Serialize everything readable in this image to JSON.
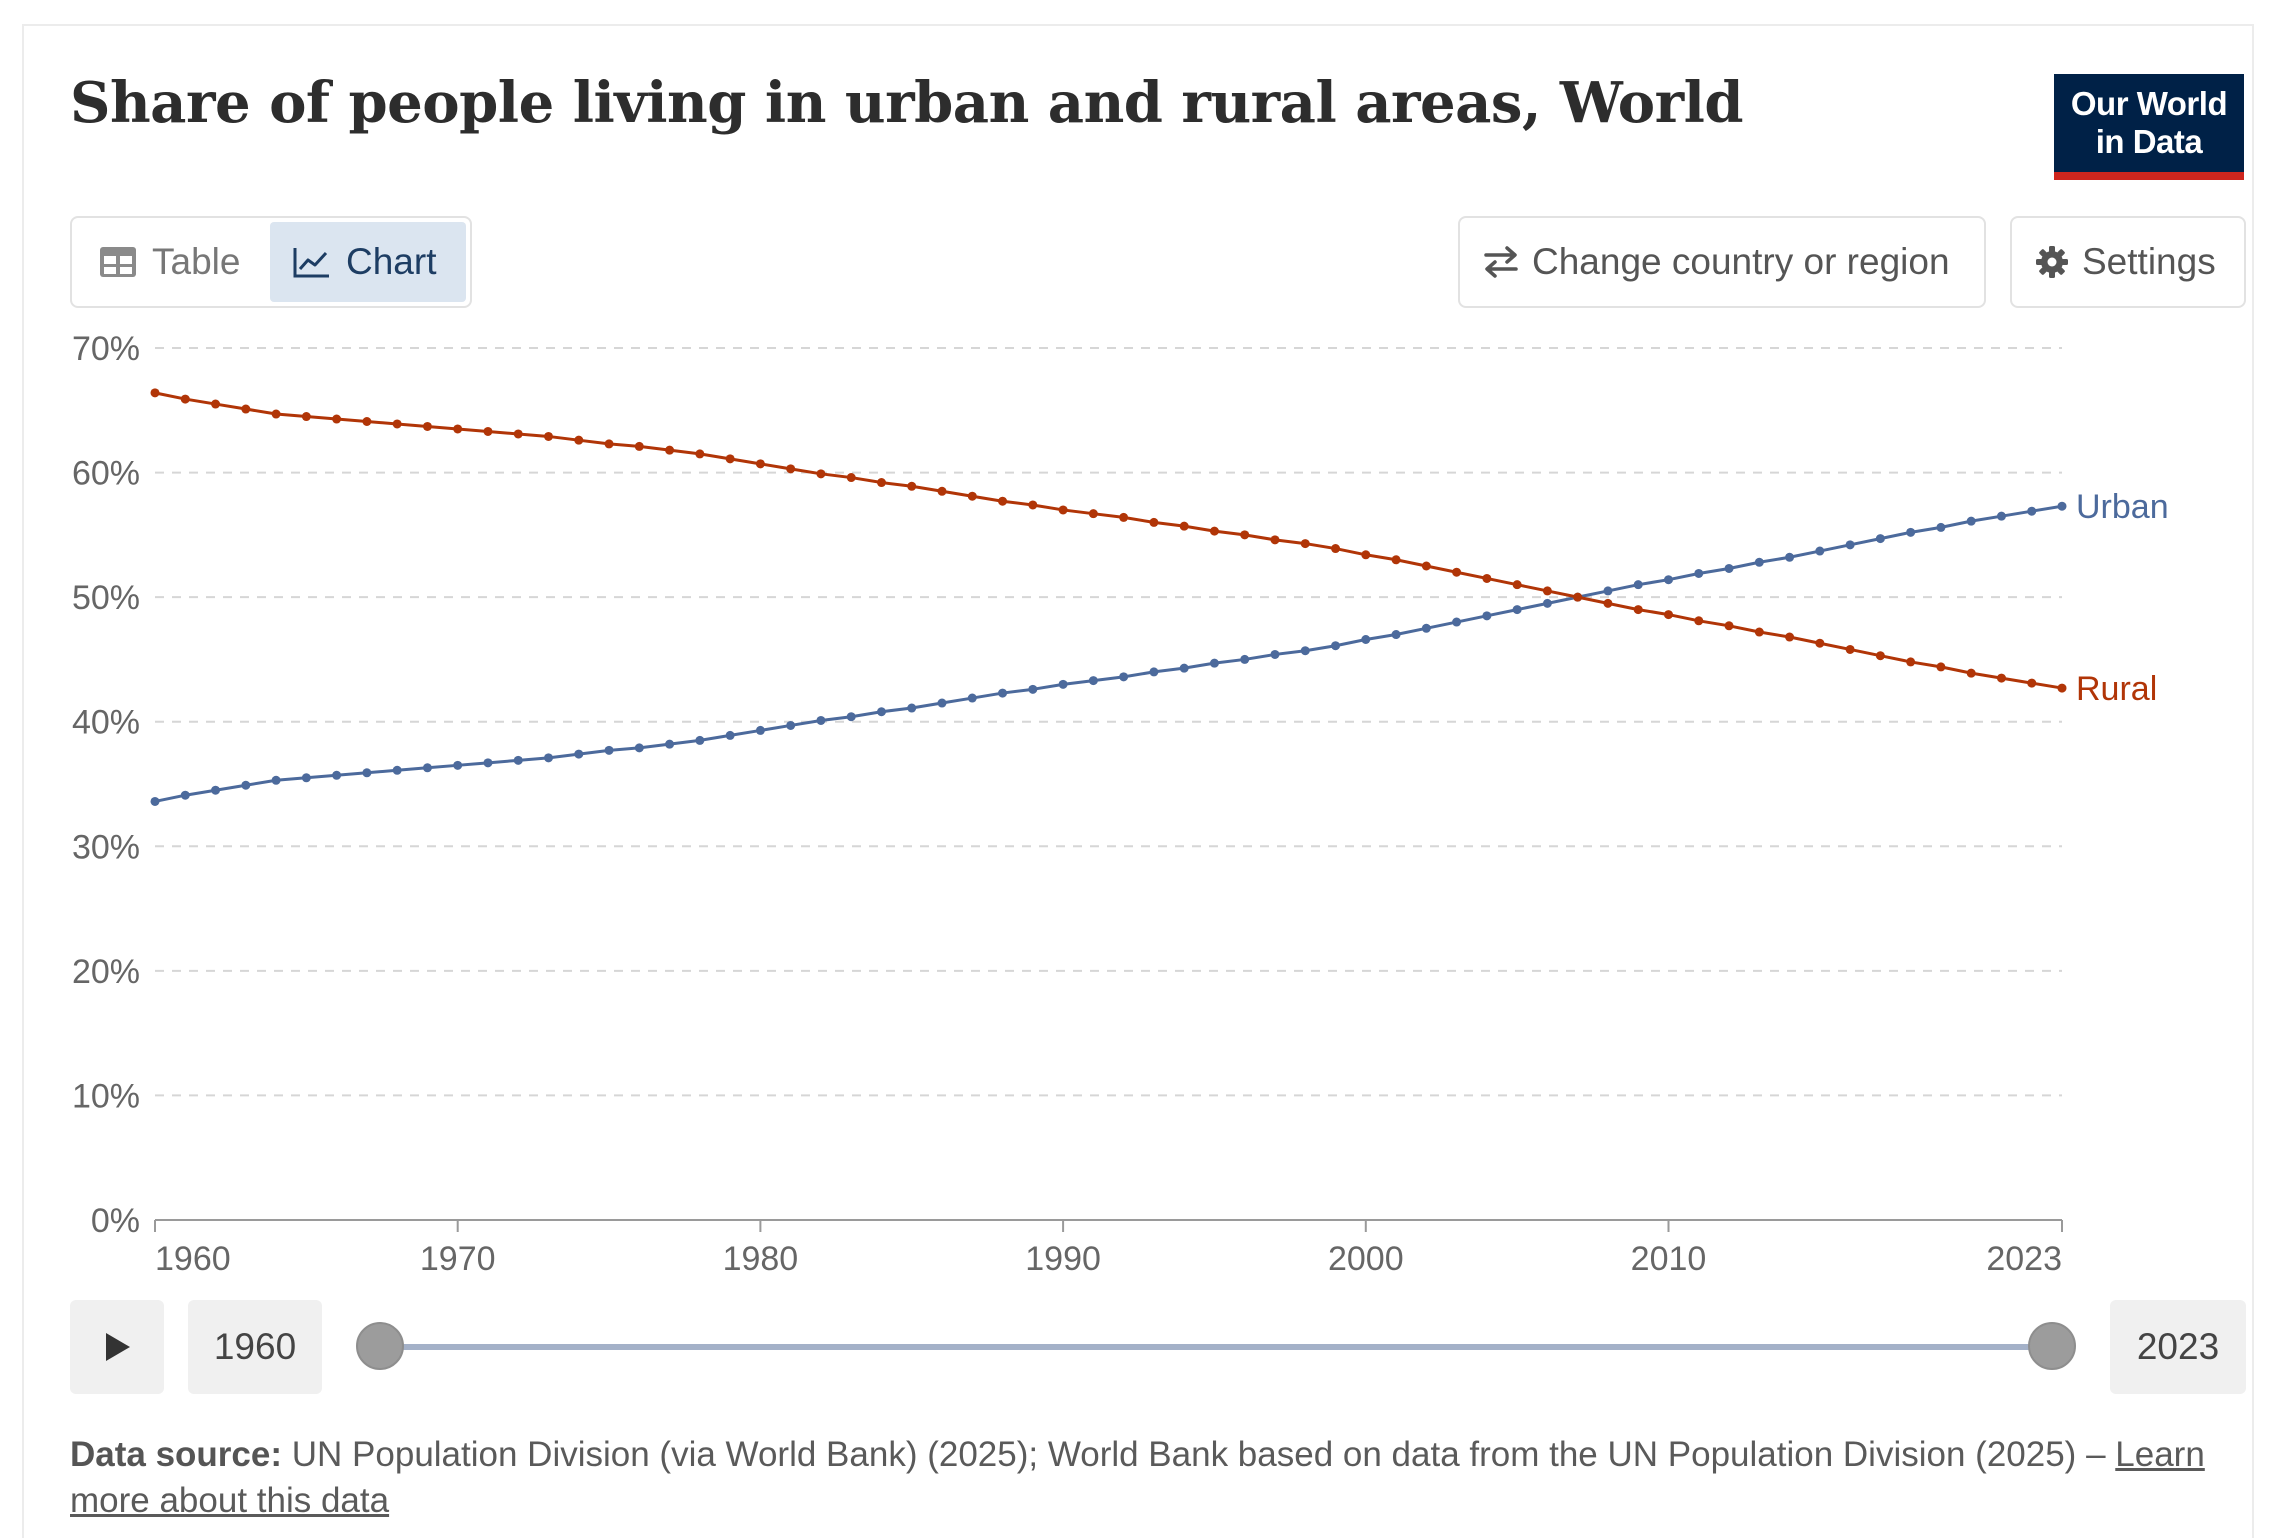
{
  "header": {
    "title": "Share of people living in urban and rural areas, World",
    "logo_line1": "Our World",
    "logo_line2": "in Data"
  },
  "tabs": [
    {
      "label": "Table",
      "icon": "table-icon",
      "active": false
    },
    {
      "label": "Chart",
      "icon": "line-chart-icon",
      "active": true
    }
  ],
  "controls": {
    "change_region_label": "Change country or region",
    "settings_label": "Settings"
  },
  "timeline": {
    "start_year": "1960",
    "end_year": "2023",
    "play_icon": "play-icon"
  },
  "footer": {
    "source_label": "Data source:",
    "source_text": "UN Population Division (via World Bank) (2025); World Bank based on data from the UN Population Division (2025) –",
    "learn_more": "Learn more about this data"
  },
  "chart_data": {
    "type": "line",
    "title": "Share of people living in urban and rural areas, World",
    "xlabel": "",
    "ylabel": "",
    "xlim": [
      1960,
      2023
    ],
    "ylim": [
      0,
      70
    ],
    "x_ticks": [
      1960,
      1970,
      1980,
      1990,
      2000,
      2010,
      2023
    ],
    "y_ticks": [
      0,
      10,
      20,
      30,
      40,
      50,
      60,
      70
    ],
    "y_tick_labels": [
      "0%",
      "10%",
      "20%",
      "30%",
      "40%",
      "50%",
      "60%",
      "70%"
    ],
    "grid": "horizontal dashed",
    "legend": "inline labels at line ends (right)",
    "colors": {
      "Urban": "#4c6a9c",
      "Rural": "#b13507"
    },
    "x": [
      1960,
      1961,
      1962,
      1963,
      1964,
      1965,
      1966,
      1967,
      1968,
      1969,
      1970,
      1971,
      1972,
      1973,
      1974,
      1975,
      1976,
      1977,
      1978,
      1979,
      1980,
      1981,
      1982,
      1983,
      1984,
      1985,
      1986,
      1987,
      1988,
      1989,
      1990,
      1991,
      1992,
      1993,
      1994,
      1995,
      1996,
      1997,
      1998,
      1999,
      2000,
      2001,
      2002,
      2003,
      2004,
      2005,
      2006,
      2007,
      2008,
      2009,
      2010,
      2011,
      2012,
      2013,
      2014,
      2015,
      2016,
      2017,
      2018,
      2019,
      2020,
      2021,
      2022,
      2023
    ],
    "series": [
      {
        "name": "Urban",
        "values": [
          33.6,
          34.1,
          34.5,
          34.9,
          35.3,
          35.5,
          35.7,
          35.9,
          36.1,
          36.3,
          36.5,
          36.7,
          36.9,
          37.1,
          37.4,
          37.7,
          37.9,
          38.2,
          38.5,
          38.9,
          39.3,
          39.7,
          40.1,
          40.4,
          40.8,
          41.1,
          41.5,
          41.9,
          42.3,
          42.6,
          43.0,
          43.3,
          43.6,
          44.0,
          44.3,
          44.7,
          45.0,
          45.4,
          45.7,
          46.1,
          46.6,
          47.0,
          47.5,
          48.0,
          48.5,
          49.0,
          49.5,
          50.0,
          50.5,
          51.0,
          51.4,
          51.9,
          52.3,
          52.8,
          53.2,
          53.7,
          54.2,
          54.7,
          55.2,
          55.6,
          56.1,
          56.5,
          56.9,
          57.3
        ]
      },
      {
        "name": "Rural",
        "values": [
          66.4,
          65.9,
          65.5,
          65.1,
          64.7,
          64.5,
          64.3,
          64.1,
          63.9,
          63.7,
          63.5,
          63.3,
          63.1,
          62.9,
          62.6,
          62.3,
          62.1,
          61.8,
          61.5,
          61.1,
          60.7,
          60.3,
          59.9,
          59.6,
          59.2,
          58.9,
          58.5,
          58.1,
          57.7,
          57.4,
          57.0,
          56.7,
          56.4,
          56.0,
          55.7,
          55.3,
          55.0,
          54.6,
          54.3,
          53.9,
          53.4,
          53.0,
          52.5,
          52.0,
          51.5,
          51.0,
          50.5,
          50.0,
          49.5,
          49.0,
          48.6,
          48.1,
          47.7,
          47.2,
          46.8,
          46.3,
          45.8,
          45.3,
          44.8,
          44.4,
          43.9,
          43.5,
          43.1,
          42.7
        ]
      }
    ]
  }
}
